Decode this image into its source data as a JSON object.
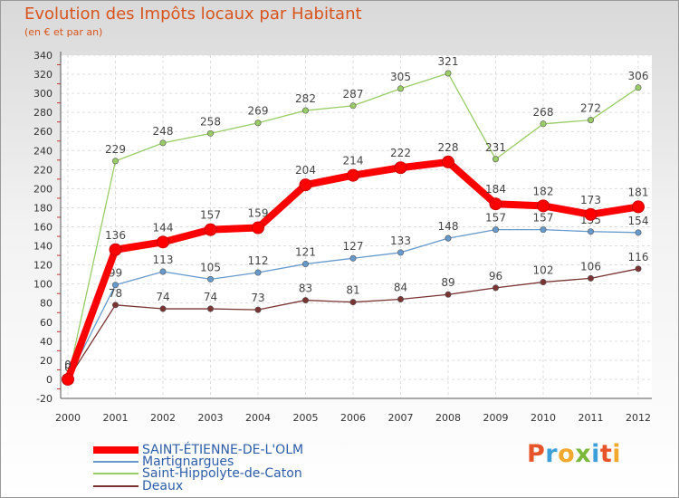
{
  "header": {
    "title": "Evolution des Impôts locaux par Habitant",
    "subtitle": "(en € et par an)"
  },
  "brand": {
    "text": "Proxiti",
    "colors": [
      "#e8542a",
      "#3d9fd8",
      "#f2a82e",
      "#7ab83c",
      "#3d9fd8",
      "#e8542a",
      "#f2a82e"
    ]
  },
  "chart_data": {
    "type": "line",
    "x": [
      "2000",
      "2001",
      "2002",
      "2003",
      "2004",
      "2005",
      "2006",
      "2007",
      "2008",
      "2009",
      "2010",
      "2011",
      "2012"
    ],
    "ylim": [
      -20,
      340
    ],
    "yticks": [
      -20,
      0,
      20,
      40,
      60,
      80,
      100,
      120,
      140,
      160,
      180,
      200,
      220,
      240,
      260,
      280,
      300,
      320,
      340
    ],
    "grid": true,
    "legend_position": "bottom-left",
    "series": [
      {
        "name": "Saint-Hippolyte-de-Caton",
        "color": "#99cc66",
        "values": [
          0,
          229,
          248,
          258,
          269,
          282,
          287,
          305,
          321,
          231,
          268,
          272,
          306
        ],
        "labels": [
          "0",
          "229",
          "248",
          "258",
          "269",
          "282",
          "287",
          "305",
          "321",
          "231",
          "268",
          "272",
          "306"
        ]
      },
      {
        "name": "Martignargues",
        "color": "#6699cc",
        "values": [
          0,
          99,
          113,
          105,
          112,
          121,
          127,
          133,
          148,
          157,
          157,
          155,
          154
        ],
        "labels": [
          "",
          "99",
          "113",
          "105",
          "112",
          "121",
          "127",
          "133",
          "148",
          "157",
          "157",
          "155",
          "154"
        ]
      },
      {
        "name": "Deaux",
        "color": "#7a3333",
        "values": [
          0,
          78,
          74,
          74,
          73,
          83,
          81,
          84,
          89,
          96,
          102,
          106,
          116
        ],
        "labels": [
          "",
          "78",
          "74",
          "74",
          "73",
          "83",
          "81",
          "84",
          "89",
          "96",
          "102",
          "106",
          "116"
        ]
      },
      {
        "name": "SAINT-ÉTIENNE-DE-L'OLM",
        "color": "#ff0000",
        "values": [
          0,
          136,
          144,
          157,
          159,
          204,
          214,
          222,
          228,
          184,
          182,
          173,
          181
        ],
        "labels": [
          "0",
          "136",
          "144",
          "157",
          "159",
          "204",
          "214",
          "222",
          "228",
          "184",
          "182",
          "173",
          "181"
        ]
      }
    ],
    "legend": [
      {
        "name": "SAINT-ÉTIENNE-DE-L'OLM",
        "color": "#ff0000"
      },
      {
        "name": "Martignargues",
        "color": "#6699cc"
      },
      {
        "name": "Saint-Hippolyte-de-Caton",
        "color": "#99cc66"
      },
      {
        "name": "Deaux",
        "color": "#7a3333"
      }
    ]
  }
}
